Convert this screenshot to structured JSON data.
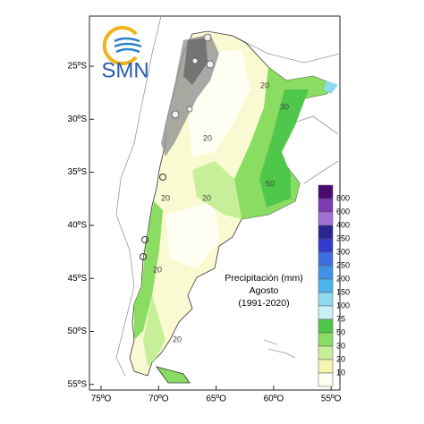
{
  "logo": "SMN",
  "title": {
    "line1": "Precipitación (mm)",
    "line2": "Agosto",
    "line3": "(1991-2020)"
  },
  "lat_ticks": [
    "25ºS",
    "30ºS",
    "35ºS",
    "40ºS",
    "45ºS",
    "50ºS",
    "55ºS"
  ],
  "lon_ticks": [
    "75ºO",
    "70ºO",
    "65ºO",
    "60ºO",
    "55ºO"
  ],
  "legend": {
    "labels": [
      "800",
      "600",
      "400",
      "350",
      "300",
      "250",
      "200",
      "150",
      "100",
      "75",
      "50",
      "30",
      "20",
      "10"
    ],
    "colors": [
      "#4b0a6e",
      "#7a3bb3",
      "#a070d8",
      "#2a2590",
      "#2f3ccf",
      "#3d6fe0",
      "#3f93e6",
      "#49b5ea",
      "#8fd9f0",
      "#c8f0f5",
      "#4fc74a",
      "#8bdc63",
      "#c7ef9a",
      "#f5f5b0",
      "#fffff4"
    ]
  },
  "contour_labels": [
    "20",
    "20",
    "20",
    "20",
    "50",
    "30",
    "20",
    "20"
  ]
}
